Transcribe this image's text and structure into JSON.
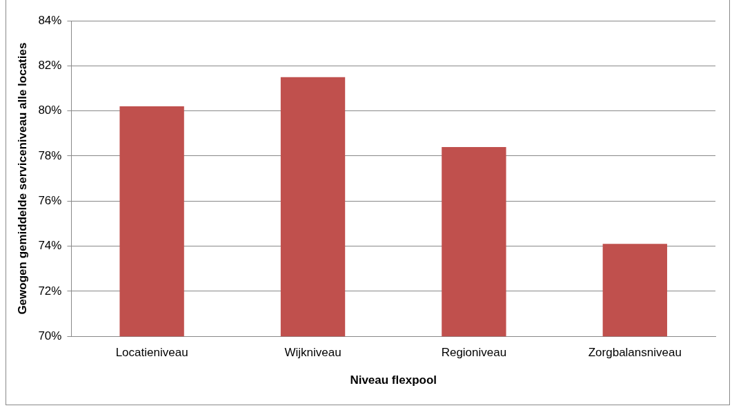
{
  "chart_data": {
    "type": "bar",
    "xlabel": "Niveau flexpool",
    "ylabel": "Gewogen gemiddelde serviceniveau alle locaties",
    "categories": [
      "Locatieniveau",
      "Wijkniveau",
      "Regioniveau",
      "Zorgbalansniveau"
    ],
    "values": [
      80.2,
      81.5,
      78.4,
      74.1
    ],
    "color": "#c0504d",
    "ylim": [
      70,
      84
    ],
    "yticks": [
      {
        "value": 70,
        "label": "70%"
      },
      {
        "value": 72,
        "label": "72%"
      },
      {
        "value": 74,
        "label": "74%"
      },
      {
        "value": 76,
        "label": "76%"
      },
      {
        "value": 78,
        "label": "78%"
      },
      {
        "value": 80,
        "label": "80%"
      },
      {
        "value": 82,
        "label": "82%"
      },
      {
        "value": 84,
        "label": "84%"
      }
    ],
    "grid": "y",
    "legend": false
  }
}
